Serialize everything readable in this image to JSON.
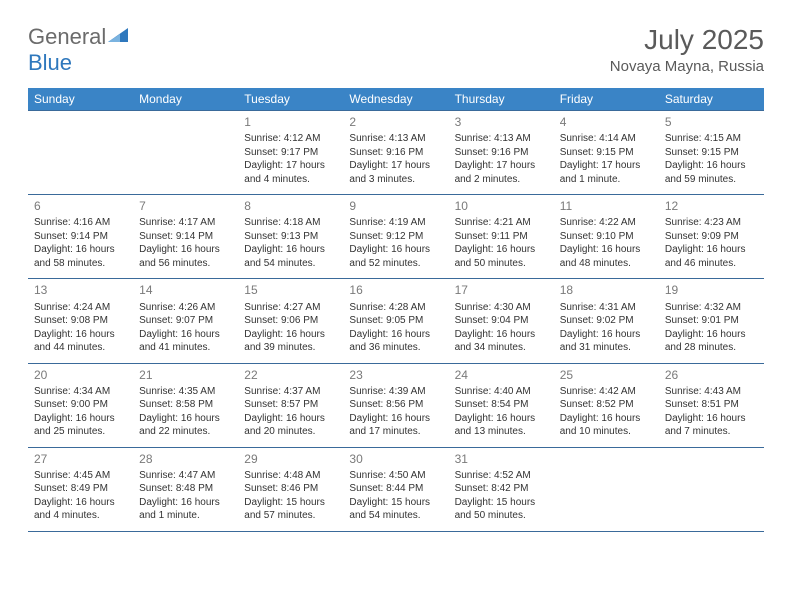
{
  "brand": {
    "name_gray": "General",
    "name_blue": "Blue"
  },
  "title": "July 2025",
  "location": "Novaya Mayna, Russia",
  "colors": {
    "header_bg": "#3a84c6",
    "header_text": "#ffffff",
    "row_border": "#3a6a9a",
    "daynum": "#7a7a7a",
    "body_text": "#333333",
    "title_text": "#5a5a5a",
    "logo_gray": "#6b6b6b",
    "logo_blue": "#2f78bd",
    "background": "#ffffff"
  },
  "days_of_week": [
    "Sunday",
    "Monday",
    "Tuesday",
    "Wednesday",
    "Thursday",
    "Friday",
    "Saturday"
  ],
  "weeks": [
    [
      null,
      null,
      {
        "n": "1",
        "sr": "4:12 AM",
        "ss": "9:17 PM",
        "dl": "17 hours and 4 minutes."
      },
      {
        "n": "2",
        "sr": "4:13 AM",
        "ss": "9:16 PM",
        "dl": "17 hours and 3 minutes."
      },
      {
        "n": "3",
        "sr": "4:13 AM",
        "ss": "9:16 PM",
        "dl": "17 hours and 2 minutes."
      },
      {
        "n": "4",
        "sr": "4:14 AM",
        "ss": "9:15 PM",
        "dl": "17 hours and 1 minute."
      },
      {
        "n": "5",
        "sr": "4:15 AM",
        "ss": "9:15 PM",
        "dl": "16 hours and 59 minutes."
      }
    ],
    [
      {
        "n": "6",
        "sr": "4:16 AM",
        "ss": "9:14 PM",
        "dl": "16 hours and 58 minutes."
      },
      {
        "n": "7",
        "sr": "4:17 AM",
        "ss": "9:14 PM",
        "dl": "16 hours and 56 minutes."
      },
      {
        "n": "8",
        "sr": "4:18 AM",
        "ss": "9:13 PM",
        "dl": "16 hours and 54 minutes."
      },
      {
        "n": "9",
        "sr": "4:19 AM",
        "ss": "9:12 PM",
        "dl": "16 hours and 52 minutes."
      },
      {
        "n": "10",
        "sr": "4:21 AM",
        "ss": "9:11 PM",
        "dl": "16 hours and 50 minutes."
      },
      {
        "n": "11",
        "sr": "4:22 AM",
        "ss": "9:10 PM",
        "dl": "16 hours and 48 minutes."
      },
      {
        "n": "12",
        "sr": "4:23 AM",
        "ss": "9:09 PM",
        "dl": "16 hours and 46 minutes."
      }
    ],
    [
      {
        "n": "13",
        "sr": "4:24 AM",
        "ss": "9:08 PM",
        "dl": "16 hours and 44 minutes."
      },
      {
        "n": "14",
        "sr": "4:26 AM",
        "ss": "9:07 PM",
        "dl": "16 hours and 41 minutes."
      },
      {
        "n": "15",
        "sr": "4:27 AM",
        "ss": "9:06 PM",
        "dl": "16 hours and 39 minutes."
      },
      {
        "n": "16",
        "sr": "4:28 AM",
        "ss": "9:05 PM",
        "dl": "16 hours and 36 minutes."
      },
      {
        "n": "17",
        "sr": "4:30 AM",
        "ss": "9:04 PM",
        "dl": "16 hours and 34 minutes."
      },
      {
        "n": "18",
        "sr": "4:31 AM",
        "ss": "9:02 PM",
        "dl": "16 hours and 31 minutes."
      },
      {
        "n": "19",
        "sr": "4:32 AM",
        "ss": "9:01 PM",
        "dl": "16 hours and 28 minutes."
      }
    ],
    [
      {
        "n": "20",
        "sr": "4:34 AM",
        "ss": "9:00 PM",
        "dl": "16 hours and 25 minutes."
      },
      {
        "n": "21",
        "sr": "4:35 AM",
        "ss": "8:58 PM",
        "dl": "16 hours and 22 minutes."
      },
      {
        "n": "22",
        "sr": "4:37 AM",
        "ss": "8:57 PM",
        "dl": "16 hours and 20 minutes."
      },
      {
        "n": "23",
        "sr": "4:39 AM",
        "ss": "8:56 PM",
        "dl": "16 hours and 17 minutes."
      },
      {
        "n": "24",
        "sr": "4:40 AM",
        "ss": "8:54 PM",
        "dl": "16 hours and 13 minutes."
      },
      {
        "n": "25",
        "sr": "4:42 AM",
        "ss": "8:52 PM",
        "dl": "16 hours and 10 minutes."
      },
      {
        "n": "26",
        "sr": "4:43 AM",
        "ss": "8:51 PM",
        "dl": "16 hours and 7 minutes."
      }
    ],
    [
      {
        "n": "27",
        "sr": "4:45 AM",
        "ss": "8:49 PM",
        "dl": "16 hours and 4 minutes."
      },
      {
        "n": "28",
        "sr": "4:47 AM",
        "ss": "8:48 PM",
        "dl": "16 hours and 1 minute."
      },
      {
        "n": "29",
        "sr": "4:48 AM",
        "ss": "8:46 PM",
        "dl": "15 hours and 57 minutes."
      },
      {
        "n": "30",
        "sr": "4:50 AM",
        "ss": "8:44 PM",
        "dl": "15 hours and 54 minutes."
      },
      {
        "n": "31",
        "sr": "4:52 AM",
        "ss": "8:42 PM",
        "dl": "15 hours and 50 minutes."
      },
      null,
      null
    ]
  ],
  "labels": {
    "sunrise": "Sunrise:",
    "sunset": "Sunset:",
    "daylight": "Daylight:"
  }
}
